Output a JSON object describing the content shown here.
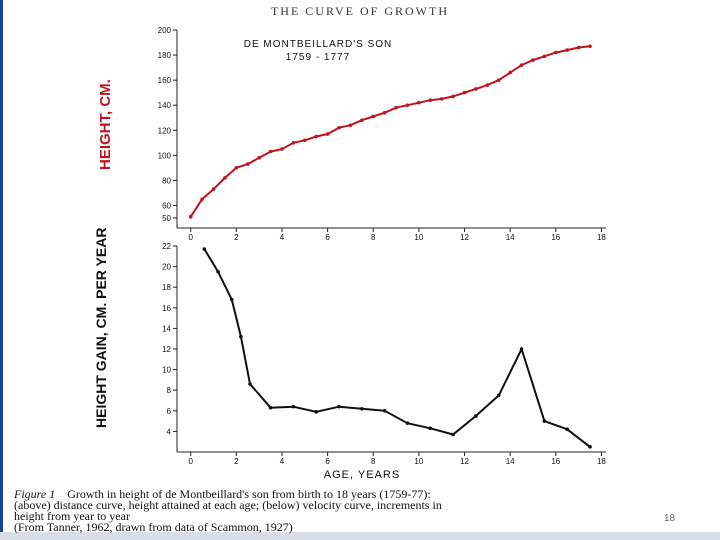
{
  "top_title": "THE CURVE OF GROWTH",
  "caption": {
    "figure_label": "Figure 1",
    "line1": "Growth in height of de Montbeillard's son from birth to 18 years (1759-77):",
    "line2": "(above) distance curve, height attained at each age; (below) velocity curve, increments in",
    "line3": "height from year to year",
    "line4": "(From Tanner, 1962, drawn from data of Scammon, 1927)"
  },
  "page_number": "18",
  "colors": {
    "distance_line": "#c0141c",
    "velocity_line": "#111111",
    "frame": "#1f3f8f"
  },
  "chart_data": [
    {
      "type": "line",
      "subtitle_line1": "DE MONTBEILLARD'S SON",
      "subtitle_line2": "1759 - 1777",
      "ylabel": "HEIGHT, CM.",
      "xlabel": "",
      "xlim": [
        -0.6,
        18.2
      ],
      "ylim": [
        42,
        200
      ],
      "x_ticks": [
        0,
        2,
        4,
        6,
        8,
        10,
        12,
        14,
        16,
        18
      ],
      "x_tick_labels": [
        "0",
        "2",
        "4",
        "6",
        "8",
        "10",
        "12",
        "14",
        "16",
        "18"
      ],
      "y_ticks": [
        50,
        60,
        80,
        100,
        120,
        140,
        160,
        180,
        200
      ],
      "y_tick_labels": [
        "50",
        "60",
        "80",
        "100",
        "120",
        "140",
        "160",
        "180",
        "200"
      ],
      "grid": false,
      "series": [
        {
          "x": [
            0,
            0.5,
            1,
            1.5,
            2,
            2.5,
            3,
            3.5,
            4,
            4.5,
            5,
            5.5,
            6,
            6.5,
            7,
            7.5,
            8,
            8.5,
            9,
            9.5,
            10,
            10.5,
            11,
            11.5,
            12,
            12.5,
            13,
            13.5,
            14,
            14.5,
            15,
            15.5,
            16,
            16.5,
            17,
            17.5
          ],
          "values": [
            51,
            65,
            73,
            82,
            90,
            93,
            98,
            103,
            105,
            110,
            112,
            115,
            117,
            122,
            124,
            128,
            131,
            134,
            138,
            140,
            142,
            144,
            145,
            147,
            150,
            153,
            156,
            160,
            166,
            172,
            176,
            179,
            182,
            184,
            186,
            187
          ]
        }
      ]
    },
    {
      "type": "line",
      "ylabel": "HEIGHT GAIN, CM. PER YEAR",
      "xlabel": "AGE, YEARS",
      "xlim": [
        -0.6,
        18.2
      ],
      "ylim": [
        2,
        22
      ],
      "x_ticks": [
        0,
        2,
        4,
        6,
        8,
        10,
        12,
        14,
        16,
        18
      ],
      "x_tick_labels": [
        "0",
        "2",
        "4",
        "6",
        "8",
        "10",
        "12",
        "14",
        "16",
        "18"
      ],
      "y_ticks": [
        4,
        6,
        8,
        10,
        12,
        14,
        16,
        18,
        20,
        22
      ],
      "y_tick_labels": [
        "4",
        "6",
        "8",
        "10",
        "12",
        "14",
        "16",
        "18",
        "20",
        "22"
      ],
      "grid": false,
      "series": [
        {
          "x": [
            0.6,
            1.2,
            1.8,
            2.2,
            2.6,
            3.5,
            4.5,
            5.5,
            6.5,
            7.5,
            8.5,
            9.5,
            10.5,
            11.5,
            12.5,
            13.5,
            14.5,
            15.5,
            16.5,
            17.5
          ],
          "values": [
            21.7,
            19.5,
            16.8,
            13.2,
            8.6,
            6.3,
            6.4,
            5.9,
            6.4,
            6.2,
            6.0,
            4.8,
            4.3,
            3.7,
            5.5,
            7.5,
            12.0,
            5.0,
            4.2,
            2.5
          ]
        }
      ]
    }
  ]
}
